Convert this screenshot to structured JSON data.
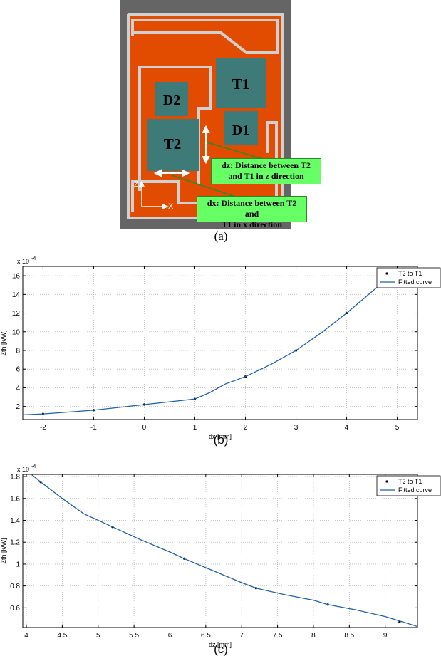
{
  "figure_a": {
    "labels": {
      "t1": "T1",
      "d1": "D1",
      "d2": "D2",
      "t2": "T2"
    },
    "axes": {
      "z": "Z",
      "x": "X"
    },
    "callout_dz": {
      "prefix": "dz:",
      "line1_rest": " Distance between T2",
      "line2": "and T1 in z direction"
    },
    "callout_dx": {
      "prefix": "dx:",
      "line1_rest": " Distance between T2 and",
      "line2": "T1 in x direction"
    },
    "caption": "(a)",
    "colors": {
      "frame": "#656565",
      "board": "#e14c00",
      "trace": "#d0d0d0",
      "chip": "#3d7a78",
      "callout": "#66ff66"
    }
  },
  "chart_data": [
    {
      "type": "line",
      "caption": "(b)",
      "xlabel": "dx [mm]",
      "ylabel": "Zth [k/W]",
      "exponent_label": "x 10",
      "exponent": "-4",
      "xlim": [
        -2.4,
        5.4
      ],
      "ylim": [
        0.6,
        17
      ],
      "xticks": [
        -2,
        -1,
        0,
        1,
        2,
        3,
        4,
        5
      ],
      "yticks": [
        2,
        4,
        6,
        8,
        10,
        12,
        14,
        16
      ],
      "grid": true,
      "legend_position": "top-right",
      "series": [
        {
          "name": "T2 to T1",
          "style": "points",
          "x": [
            -2,
            -1,
            0,
            1,
            2,
            3,
            4,
            5
          ],
          "y": [
            1.2,
            1.6,
            2.2,
            2.8,
            5.2,
            8.0,
            12.0,
            16.6
          ]
        },
        {
          "name": "Fitted curve",
          "style": "line",
          "x": [
            -2.4,
            -2,
            -1.5,
            -1,
            -0.5,
            0,
            0.5,
            1,
            1.3,
            1.6,
            2,
            2.5,
            3,
            3.5,
            4,
            4.5,
            4.7
          ],
          "y": [
            1.1,
            1.2,
            1.4,
            1.6,
            1.9,
            2.2,
            2.5,
            2.8,
            3.5,
            4.4,
            5.2,
            6.5,
            8.0,
            9.9,
            12.0,
            14.3,
            15.2
          ]
        }
      ]
    },
    {
      "type": "line",
      "caption": "(c)",
      "xlabel": "dz [mm]",
      "ylabel": "Zth [k/W]",
      "exponent_label": "x 10",
      "exponent": "-4",
      "xlim": [
        3.95,
        9.45
      ],
      "ylim": [
        0.42,
        1.82
      ],
      "xticks": [
        4,
        4.5,
        5,
        5.5,
        6,
        6.5,
        7,
        7.5,
        8,
        8.5,
        9
      ],
      "yticks": [
        0.6,
        0.8,
        1.0,
        1.2,
        1.4,
        1.6,
        1.8
      ],
      "ytick_labels": [
        "0.6",
        "0.8",
        "1",
        "1.2",
        "1.4",
        "1.6",
        "1.8"
      ],
      "grid": true,
      "legend_position": "top-right",
      "series": [
        {
          "name": "T2 to T1",
          "style": "points",
          "x": [
            4.2,
            5.2,
            6.2,
            7.2,
            8.2,
            9.2
          ],
          "y": [
            1.75,
            1.34,
            1.05,
            0.78,
            0.63,
            0.47
          ]
        },
        {
          "name": "Fitted curve",
          "style": "line",
          "x": [
            4.05,
            4.2,
            4.5,
            4.8,
            5.2,
            5.6,
            6.0,
            6.2,
            6.6,
            7.0,
            7.2,
            7.6,
            8.0,
            8.2,
            8.6,
            9.0,
            9.2,
            9.45
          ],
          "y": [
            1.83,
            1.75,
            1.6,
            1.46,
            1.34,
            1.22,
            1.11,
            1.05,
            0.94,
            0.83,
            0.78,
            0.72,
            0.67,
            0.63,
            0.58,
            0.52,
            0.48,
            0.43
          ]
        }
      ]
    }
  ]
}
